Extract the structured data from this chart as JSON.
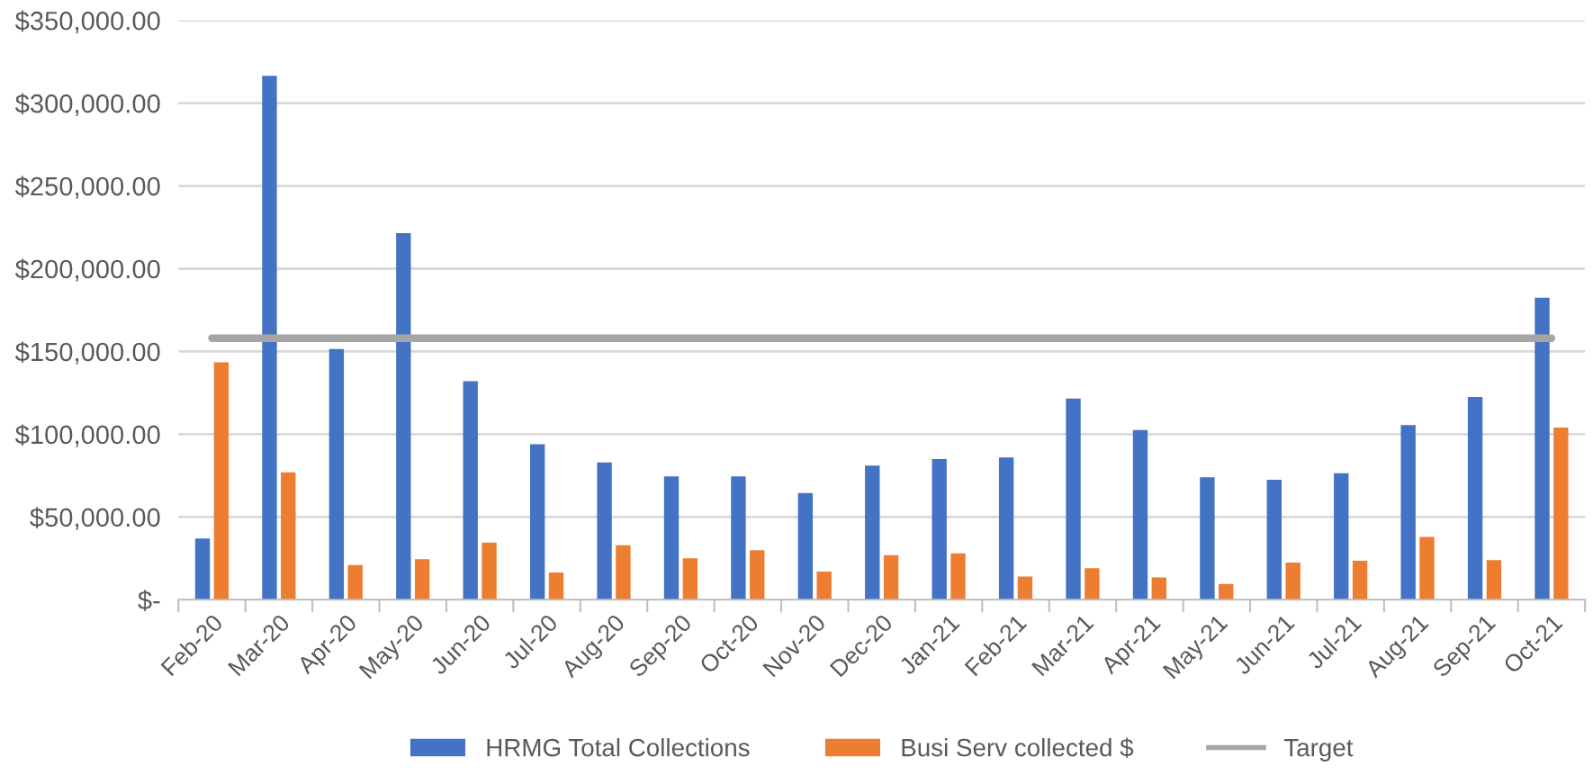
{
  "chart_data": {
    "type": "bar",
    "categories": [
      "Feb-20",
      "Mar-20",
      "Apr-20",
      "May-20",
      "Jun-20",
      "Jul-20",
      "Aug-20",
      "Sep-20",
      "Oct-20",
      "Nov-20",
      "Dec-20",
      "Jan-21",
      "Feb-21",
      "Mar-21",
      "Apr-21",
      "May-21",
      "Jun-21",
      "Jul-21",
      "Aug-21",
      "Sep-21",
      "Oct-21"
    ],
    "series": [
      {
        "name": "HRMG Total Collections",
        "color": "#4472c4",
        "values": [
          37000,
          316500,
          151500,
          221500,
          132000,
          94000,
          83000,
          74500,
          74500,
          64500,
          81000,
          85000,
          86000,
          121500,
          102500,
          74000,
          72500,
          76500,
          105500,
          122500,
          182500
        ]
      },
      {
        "name": "Busi Serv collected $",
        "color": "#ed7d31",
        "values": [
          143500,
          77000,
          21000,
          24500,
          34500,
          16500,
          33000,
          25000,
          30000,
          17000,
          27000,
          28000,
          14000,
          19000,
          13500,
          9500,
          22500,
          23500,
          38000,
          24000,
          104000
        ]
      },
      {
        "name": "Target",
        "type": "line",
        "color": "#a5a5a5",
        "values": [
          158000,
          158000,
          158000,
          158000,
          158000,
          158000,
          158000,
          158000,
          158000,
          158000,
          158000,
          158000,
          158000,
          158000,
          158000,
          158000,
          158000,
          158000,
          158000,
          158000,
          158000
        ]
      }
    ],
    "ylim": [
      0,
      350000
    ],
    "yticks": [
      {
        "value": 0,
        "label": "$-"
      },
      {
        "value": 50000,
        "label": "$50,000.00"
      },
      {
        "value": 100000,
        "label": "$100,000.00"
      },
      {
        "value": 150000,
        "label": "$150,000.00"
      },
      {
        "value": 200000,
        "label": "$200,000.00"
      },
      {
        "value": 250000,
        "label": "$250,000.00"
      },
      {
        "value": 300000,
        "label": "$300,000.00"
      },
      {
        "value": 350000,
        "label": "$350,000.00"
      }
    ],
    "grid": "y",
    "legend": "bottom"
  }
}
